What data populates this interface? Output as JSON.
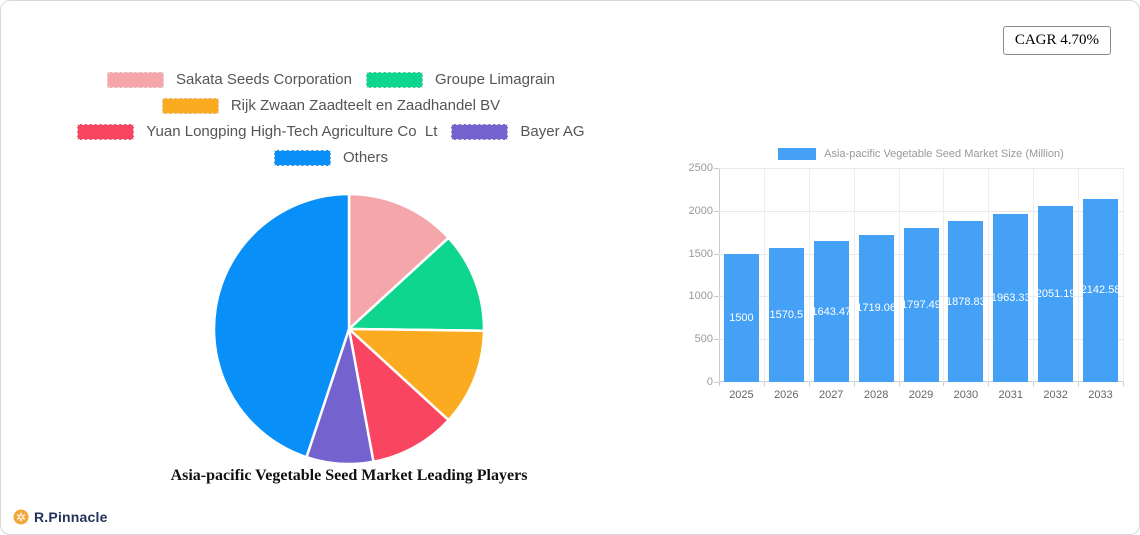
{
  "badge": {
    "label": "CAGR 4.70%"
  },
  "logo": {
    "text": "R.Pinnacle",
    "icon_color": "#F5A63B"
  },
  "chart_data": [
    {
      "type": "pie",
      "title": "Asia-pacific Vegetable Seed Market Leading Players",
      "legend_position": "top",
      "slices": [
        {
          "label": "Sakata Seeds Corporation",
          "value": 13.2,
          "color": "#F4A6AB"
        },
        {
          "label": "Groupe Limagrain",
          "value": 12.0,
          "color": "#0FD68F"
        },
        {
          "label": "Rijk Zwaan Zaadteelt en Zaadhandel BV",
          "value": 11.6,
          "color": "#FBAB1F"
        },
        {
          "label": "Yuan Longping High-Tech Agriculture Co  Lt",
          "value": 10.3,
          "color": "#F94560"
        },
        {
          "label": "Bayer AG",
          "value": 8.0,
          "color": "#7463CE"
        },
        {
          "label": "Others",
          "value": 44.9,
          "color": "#0990F8"
        }
      ]
    },
    {
      "type": "bar",
      "legend": "Asia-pacific Vegetable Seed Market Size (Million)",
      "bar_color": "#44A1F5",
      "categories": [
        "2025",
        "2026",
        "2027",
        "2028",
        "2029",
        "2030",
        "2031",
        "2032",
        "2033"
      ],
      "values": [
        1500,
        1570.5,
        1643.47,
        1719.06,
        1797.49,
        1878.83,
        1963.33,
        2051.19,
        2142.58
      ],
      "value_labels": [
        "1500",
        "1570.5",
        "1643.47",
        "1719.06",
        "1797.49",
        "1878.83",
        "1963.33",
        "2051.19",
        "2142.58"
      ],
      "y_ticks": [
        0,
        500,
        1000,
        1500,
        2000,
        2500
      ],
      "ylim": [
        0,
        2500
      ],
      "grid": true,
      "legend_position": "top"
    }
  ]
}
